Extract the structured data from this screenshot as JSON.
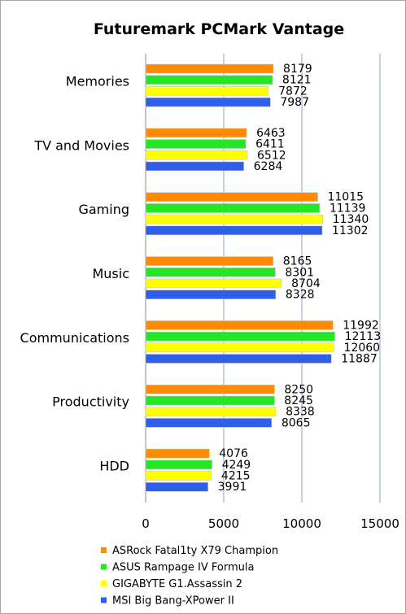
{
  "chart_data": {
    "type": "bar",
    "orientation": "horizontal",
    "title": "Futuremark PCMark Vantage",
    "categories": [
      "Memories",
      "TV and Movies",
      "Gaming",
      "Music",
      "Communications",
      "Productivity",
      "HDD"
    ],
    "series": [
      {
        "name": "ASRock Fatal1ty X79 Champion",
        "color": "#ff8c00",
        "values": [
          8179,
          6463,
          11015,
          8165,
          11992,
          8250,
          4076
        ]
      },
      {
        "name": "ASUS Rampage IV Formula",
        "color": "#22e722",
        "values": [
          8121,
          6411,
          11139,
          8301,
          12113,
          8245,
          4249
        ]
      },
      {
        "name": "GIGABYTE G1.Assassin 2",
        "color": "#ffff00",
        "values": [
          7872,
          6512,
          11340,
          8704,
          12060,
          8338,
          4215
        ]
      },
      {
        "name": "MSI Big Bang-XPower II",
        "color": "#2f5fe8",
        "values": [
          7987,
          6284,
          11302,
          8328,
          11887,
          8065,
          3991
        ]
      }
    ],
    "xlim": [
      0,
      15000
    ],
    "xticks": [
      0,
      5000,
      10000,
      15000
    ],
    "xtick_labels": [
      "0",
      "5000",
      "10000",
      "15000"
    ],
    "grid": true,
    "legend_position": "bottom"
  }
}
